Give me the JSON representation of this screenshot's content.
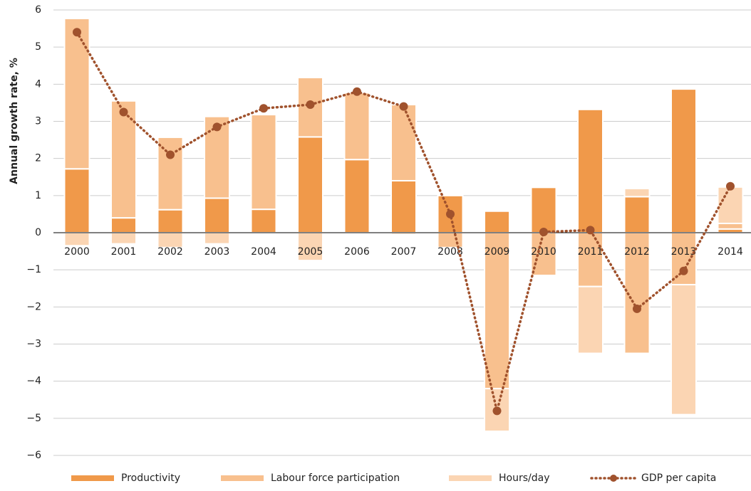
{
  "chart_data": {
    "type": "bar",
    "ylabel": "Annual growth rate, %",
    "categories": [
      "2000",
      "2001",
      "2002",
      "2003",
      "2004",
      "2005",
      "2006",
      "2007",
      "2008",
      "2009",
      "2010",
      "2011",
      "2012",
      "2013",
      "2014"
    ],
    "series": [
      {
        "name": "Productivity",
        "color": "#f0994a",
        "values": [
          1.72,
          0.4,
          0.62,
          0.93,
          0.63,
          2.58,
          1.97,
          1.4,
          1.0,
          0.58,
          1.22,
          3.32,
          0.97,
          3.87,
          0.1
        ]
      },
      {
        "name": "Labour force participation",
        "color": "#f8c08e",
        "values": [
          4.05,
          3.15,
          1.95,
          2.2,
          2.55,
          1.6,
          1.8,
          2.05,
          -0.4,
          -4.2,
          -1.15,
          -1.45,
          -3.25,
          -1.4,
          0.15
        ]
      },
      {
        "name": "Hours/day",
        "color": "#fbd5b3",
        "values": [
          -0.35,
          -0.3,
          -0.4,
          -0.3,
          0,
          -0.75,
          0,
          -0.05,
          0,
          -1.15,
          0,
          -1.8,
          0.22,
          -3.5,
          0.98
        ]
      },
      {
        "name": "GDP per capita",
        "type": "line",
        "color": "#a0522d",
        "values": [
          5.4,
          3.25,
          2.1,
          2.85,
          3.35,
          3.45,
          3.8,
          3.4,
          0.5,
          -4.8,
          0.02,
          0.07,
          -2.05,
          -1.03,
          1.25
        ]
      }
    ],
    "ylim": [
      -6,
      6
    ],
    "yticks": [
      {
        "value": -6,
        "label": "−6"
      },
      {
        "value": -5,
        "label": "−5"
      },
      {
        "value": -4,
        "label": "−4"
      },
      {
        "value": -3,
        "label": "−3"
      },
      {
        "value": -2,
        "label": "−2"
      },
      {
        "value": -1,
        "label": "−1"
      },
      0,
      1,
      2,
      3,
      4,
      5,
      6
    ],
    "grid": true,
    "legend": "bottom"
  }
}
